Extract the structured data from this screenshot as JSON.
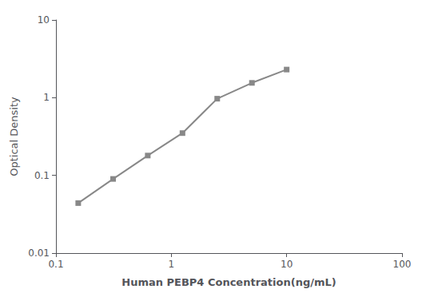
{
  "chart_data": {
    "type": "line",
    "x": [
      0.156,
      0.313,
      0.625,
      1.25,
      2.5,
      5.0,
      10.0
    ],
    "series": [
      {
        "values": [
          0.044,
          0.09,
          0.18,
          0.35,
          0.97,
          1.55,
          2.3
        ],
        "color": "#888888",
        "marker": "square"
      }
    ],
    "xlabel": "Human PEBP4 Concentration(ng/mL)",
    "ylabel": "Optical Density",
    "xlim": [
      0.1,
      100
    ],
    "ylim": [
      0.01,
      10
    ],
    "xticks": [
      0.1,
      1,
      10,
      100
    ],
    "yticks": [
      0.01,
      0.1,
      1,
      10
    ],
    "log": true,
    "grid": false
  }
}
